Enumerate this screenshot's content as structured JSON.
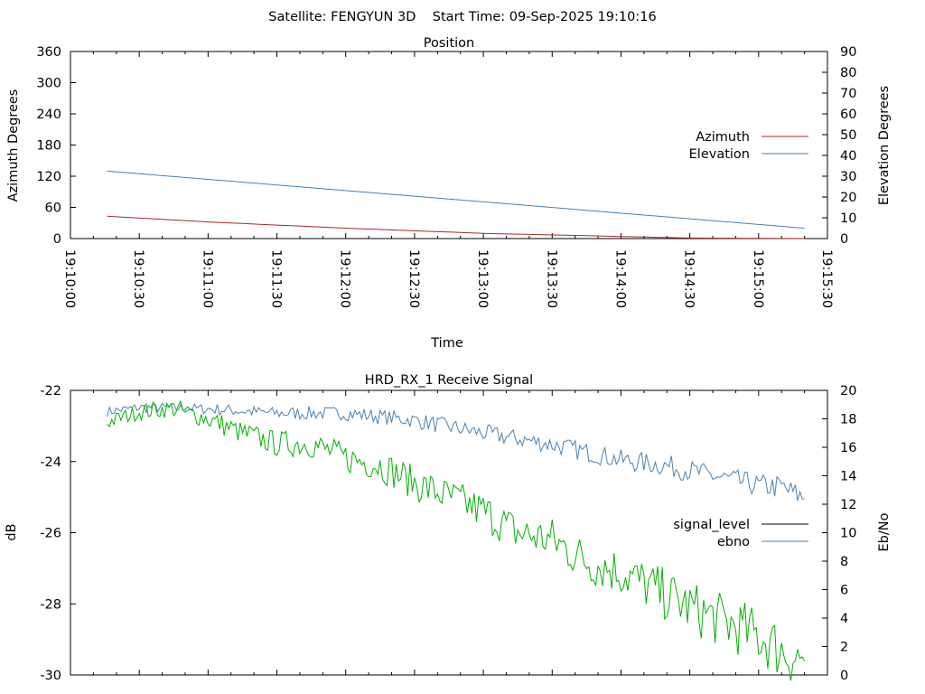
{
  "header": {
    "title": "Satellite: FENGYUN 3D    Start Time: 09-Sep-2025 19:10:16"
  },
  "colors": {
    "azimuth": "#a52a2a",
    "elevation": "#4682b4",
    "signal_level": "#000000",
    "ebno_legend": "#4682b4",
    "ebno_line": "#4682b4",
    "green_line": "#00b000",
    "axes": "#000000"
  },
  "chart_data": [
    {
      "type": "line",
      "title": "Position",
      "xlabel": "Time",
      "ylabel": "Azimuth Degrees",
      "y2label": "Elevation Degrees",
      "ylim": [
        0,
        360
      ],
      "y2lim": [
        0,
        90
      ],
      "yticks": [
        "0",
        "60",
        "120",
        "180",
        "240",
        "300",
        "360"
      ],
      "y2ticks": [
        "0",
        "10",
        "20",
        "30",
        "40",
        "50",
        "60",
        "70",
        "80",
        "90"
      ],
      "xlim": [
        "19:10:00",
        "19:15:30"
      ],
      "xticks": [
        "19:10:00",
        "19:10:30",
        "19:11:00",
        "19:11:30",
        "19:12:00",
        "19:12:30",
        "19:13:00",
        "19:13:30",
        "19:14:00",
        "19:14:30",
        "19:15:00",
        "19:15:30"
      ],
      "legend_position": "right",
      "grid": false,
      "series": [
        {
          "name": "Azimuth",
          "axis": "y",
          "color": "#a52a2a",
          "x": [
            "19:10:16",
            "19:11:00",
            "19:12:00",
            "19:13:00",
            "19:14:00",
            "19:14:30",
            "19:15:20"
          ],
          "values": [
            43,
            32,
            20,
            10,
            4,
            1,
            0
          ]
        },
        {
          "name": "Elevation",
          "axis": "y2",
          "color": "#4682b4",
          "x": [
            "19:10:16",
            "19:15:20"
          ],
          "values": [
            32.5,
            5
          ]
        }
      ]
    },
    {
      "type": "line",
      "title": "HRD_RX_1 Receive Signal",
      "xlabel": "",
      "ylabel": "dB",
      "y2label": "Eb/No",
      "ylim": [
        -30,
        -22
      ],
      "y2lim": [
        0,
        20
      ],
      "yticks": [
        "-30",
        "-28",
        "-26",
        "-24",
        "-22"
      ],
      "y2ticks": [
        "0",
        "2",
        "4",
        "6",
        "8",
        "10",
        "12",
        "14",
        "16",
        "18",
        "20"
      ],
      "xlim": [
        "19:10:00",
        "19:15:30"
      ],
      "legend_position": "right",
      "grid": false,
      "series": [
        {
          "name": "signal_level",
          "axis": "y",
          "color": "#000000",
          "x": [],
          "values": []
        },
        {
          "name": "ebno",
          "axis": "y2",
          "color": "#4682b4",
          "x": [
            "19:10:16",
            "19:10:30",
            "19:11:00",
            "19:11:30",
            "19:12:00",
            "19:12:30",
            "19:13:00",
            "19:13:30",
            "19:14:00",
            "19:14:20",
            "19:14:40",
            "19:15:00",
            "19:15:10",
            "19:15:20"
          ],
          "values": [
            18.5,
            18.8,
            18.7,
            18.4,
            18.4,
            17.9,
            17.0,
            16.2,
            15.1,
            14.7,
            14.0,
            13.3,
            13.2,
            12.4
          ]
        },
        {
          "color": "#00b000",
          "axis": "y",
          "x": [
            "19:10:16",
            "19:10:30",
            "19:10:45",
            "19:11:00",
            "19:11:15",
            "19:11:30",
            "19:11:45",
            "19:12:00",
            "19:12:15",
            "19:12:30",
            "19:12:45",
            "19:13:00",
            "19:13:15",
            "19:13:30",
            "19:13:45",
            "19:14:00",
            "19:14:15",
            "19:14:30",
            "19:14:45",
            "19:15:00",
            "19:15:10",
            "19:15:20"
          ],
          "values": [
            -22.9,
            -22.6,
            -22.5,
            -22.8,
            -23.2,
            -23.5,
            -23.5,
            -23.9,
            -24.1,
            -24.6,
            -25.0,
            -25.4,
            -26.0,
            -26.2,
            -26.8,
            -27.1,
            -27.6,
            -28.1,
            -28.5,
            -28.9,
            -29.3,
            -29.6
          ]
        }
      ]
    }
  ]
}
